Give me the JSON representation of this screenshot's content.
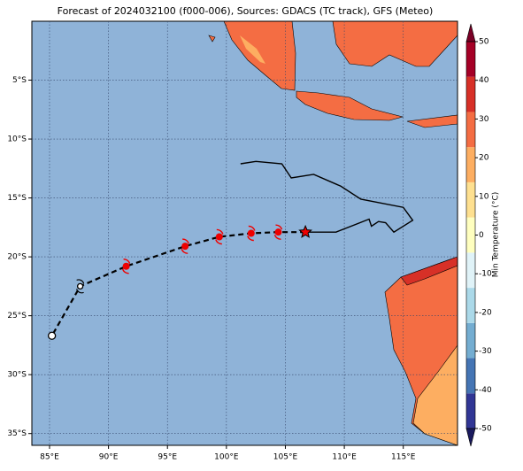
{
  "chart_data": {
    "type": "map",
    "title": "Forecast of 2024032100 (f000-006), Sources: GDACS (TC track), GFS (Meteo)",
    "xlim": [
      83.5,
      119.6
    ],
    "ylim": [
      -36,
      0
    ],
    "xticks": [
      {
        "value": 85,
        "label": "85°E"
      },
      {
        "value": 90,
        "label": "90°E"
      },
      {
        "value": 95,
        "label": "95°E"
      },
      {
        "value": 100,
        "label": "100°E"
      },
      {
        "value": 105,
        "label": "105°E"
      },
      {
        "value": 110,
        "label": "110°E"
      },
      {
        "value": 115,
        "label": "115°E"
      }
    ],
    "yticks": [
      {
        "value": -5,
        "label": "5°S"
      },
      {
        "value": -10,
        "label": "10°S"
      },
      {
        "value": -15,
        "label": "15°S"
      },
      {
        "value": -20,
        "label": "20°S"
      },
      {
        "value": -25,
        "label": "25°S"
      },
      {
        "value": -30,
        "label": "30°S"
      },
      {
        "value": -35,
        "label": "35°S"
      }
    ],
    "grid": true,
    "colorbar": {
      "label": "Min Temperature (°C)",
      "clim": [
        -50,
        50
      ],
      "ticks": [
        -50,
        -40,
        -30,
        -20,
        -10,
        0,
        10,
        20,
        30,
        40,
        50
      ],
      "colors": [
        "#313695",
        "#4575b4",
        "#74add1",
        "#abd9e9",
        "#e0f3f8",
        "#ffffbf",
        "#fee090",
        "#fdae61",
        "#f46d43",
        "#d73027",
        "#a50026"
      ],
      "extend_low": "#1a1a5e",
      "extend_high": "#7a0026"
    },
    "series": [
      {
        "name": "Past track",
        "color": "#000000",
        "x": [
          101.2,
          102.5,
          104.7,
          105.5,
          107.4,
          109.7,
          111.4,
          115.0,
          115.8,
          114.2,
          113.5,
          112.9,
          112.3,
          112.1,
          109.3,
          106.7
        ],
        "y": [
          -12.1,
          -11.9,
          -12.1,
          -13.3,
          -13.0,
          -14.0,
          -15.1,
          -15.8,
          -16.9,
          -17.9,
          -17.1,
          -17.0,
          -17.4,
          -16.8,
          -17.9,
          -17.9
        ]
      },
      {
        "name": "Forecast track",
        "color": "#000000",
        "x": [
          106.7,
          104.4,
          102.1,
          99.4,
          96.5,
          91.5,
          87.6,
          85.2
        ],
        "y": [
          -17.9,
          -17.9,
          -18.0,
          -18.3,
          -19.1,
          -20.8,
          -22.5,
          -26.7
        ]
      }
    ]
  }
}
